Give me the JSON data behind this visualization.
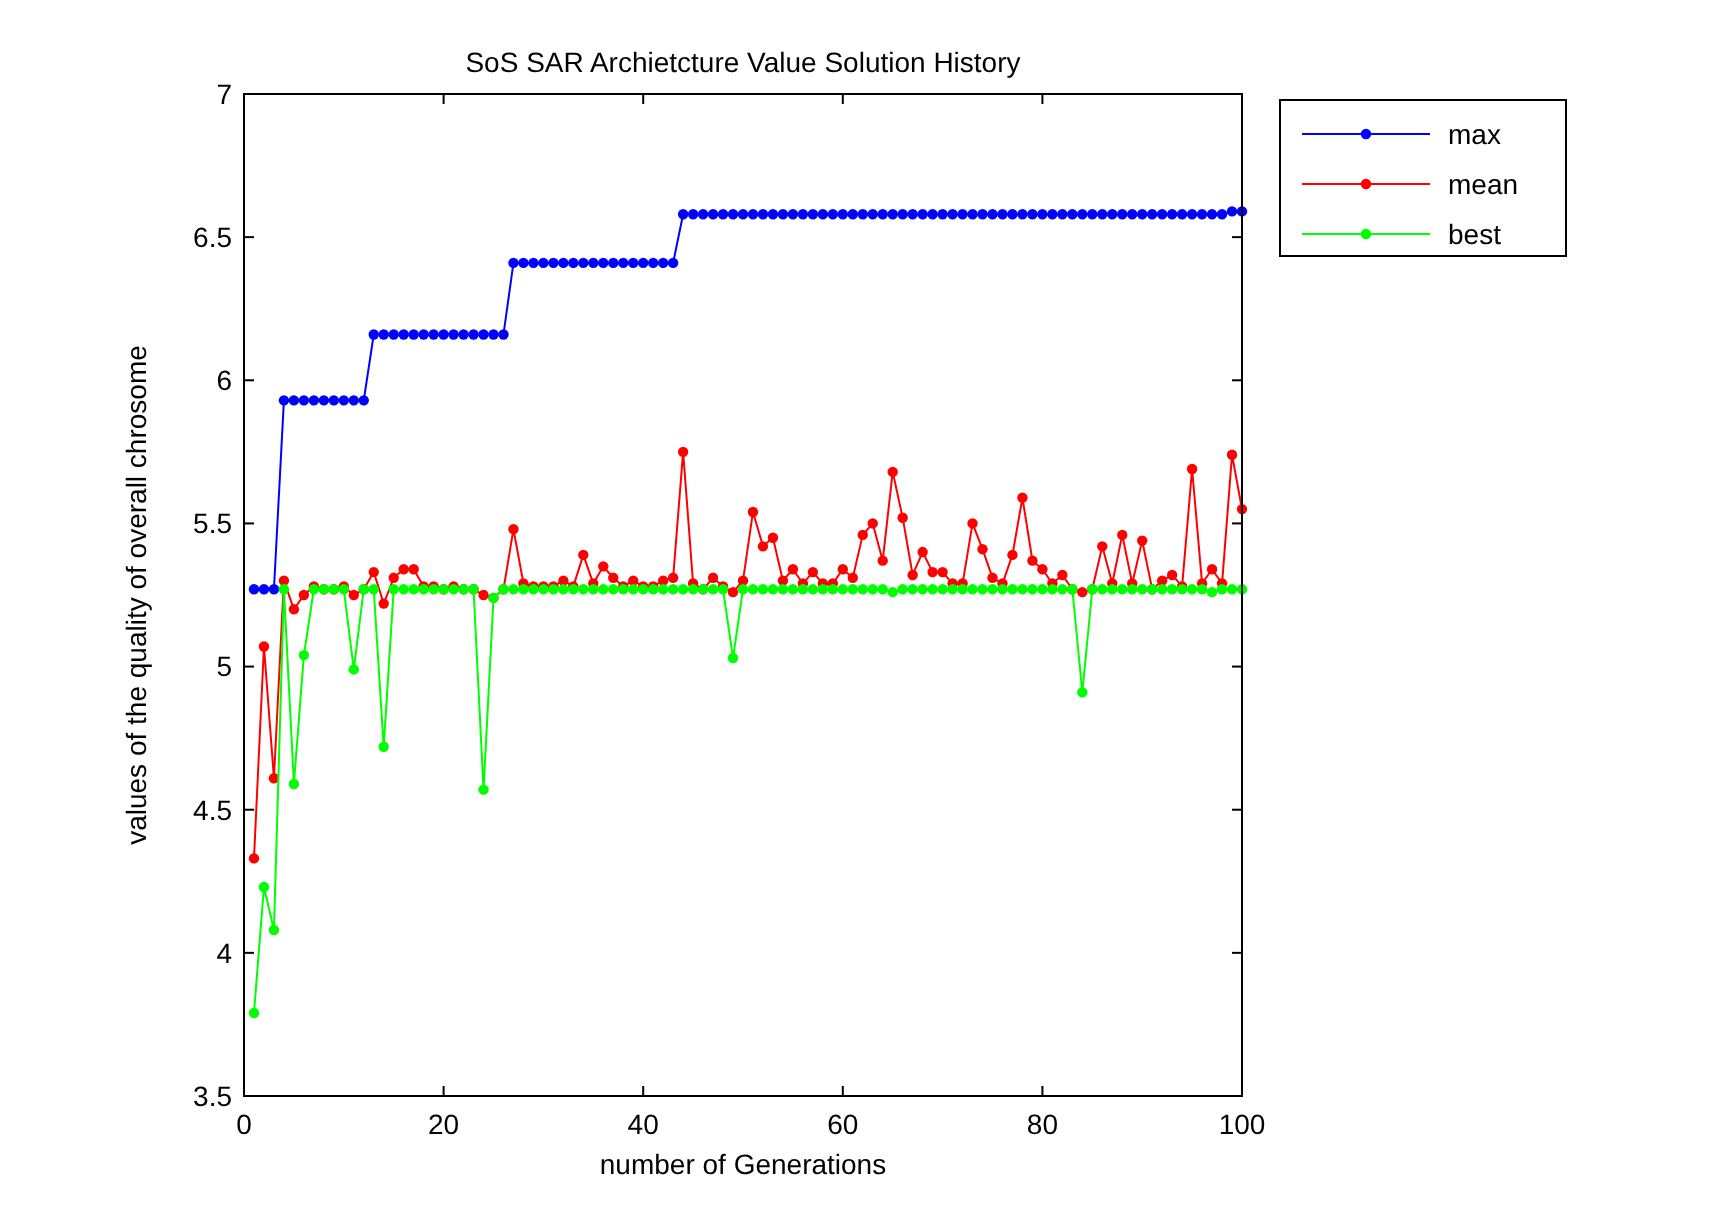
{
  "chart_data": {
    "type": "line",
    "title": "SoS SAR Archietcture Value Solution History",
    "xlabel": "number of Generations",
    "ylabel": "values of the quality of overall chrosome",
    "x": [
      1,
      2,
      3,
      4,
      5,
      6,
      7,
      8,
      9,
      10,
      11,
      12,
      13,
      14,
      15,
      16,
      17,
      18,
      19,
      20,
      21,
      22,
      23,
      24,
      25,
      26,
      27,
      28,
      29,
      30,
      31,
      32,
      33,
      34,
      35,
      36,
      37,
      38,
      39,
      40,
      41,
      42,
      43,
      44,
      45,
      46,
      47,
      48,
      49,
      50,
      51,
      52,
      53,
      54,
      55,
      56,
      57,
      58,
      59,
      60,
      61,
      62,
      63,
      64,
      65,
      66,
      67,
      68,
      69,
      70,
      71,
      72,
      73,
      74,
      75,
      76,
      77,
      78,
      79,
      80,
      81,
      82,
      83,
      84,
      85,
      86,
      87,
      88,
      89,
      90,
      91,
      92,
      93,
      94,
      95,
      96,
      97,
      98,
      99,
      100
    ],
    "series": [
      {
        "name": "max",
        "color": "#0000ff",
        "values": [
          5.27,
          5.27,
          5.27,
          5.93,
          5.93,
          5.93,
          5.93,
          5.93,
          5.93,
          5.93,
          5.93,
          5.93,
          6.16,
          6.16,
          6.16,
          6.16,
          6.16,
          6.16,
          6.16,
          6.16,
          6.16,
          6.16,
          6.16,
          6.16,
          6.16,
          6.16,
          6.41,
          6.41,
          6.41,
          6.41,
          6.41,
          6.41,
          6.41,
          6.41,
          6.41,
          6.41,
          6.41,
          6.41,
          6.41,
          6.41,
          6.41,
          6.41,
          6.41,
          6.58,
          6.58,
          6.58,
          6.58,
          6.58,
          6.58,
          6.58,
          6.58,
          6.58,
          6.58,
          6.58,
          6.58,
          6.58,
          6.58,
          6.58,
          6.58,
          6.58,
          6.58,
          6.58,
          6.58,
          6.58,
          6.58,
          6.58,
          6.58,
          6.58,
          6.58,
          6.58,
          6.58,
          6.58,
          6.58,
          6.58,
          6.58,
          6.58,
          6.58,
          6.58,
          6.58,
          6.58,
          6.58,
          6.58,
          6.58,
          6.58,
          6.58,
          6.58,
          6.58,
          6.58,
          6.58,
          6.58,
          6.58,
          6.58,
          6.58,
          6.58,
          6.58,
          6.58,
          6.58,
          6.58,
          6.59,
          6.59
        ]
      },
      {
        "name": "mean",
        "color": "#ff0000",
        "values": [
          4.33,
          5.07,
          4.61,
          5.3,
          5.2,
          5.25,
          5.28,
          5.27,
          5.27,
          5.28,
          5.25,
          5.27,
          5.33,
          5.22,
          5.31,
          5.34,
          5.34,
          5.28,
          5.28,
          5.27,
          5.28,
          5.27,
          5.27,
          5.25,
          5.24,
          5.27,
          5.48,
          5.29,
          5.28,
          5.28,
          5.28,
          5.3,
          5.28,
          5.39,
          5.29,
          5.35,
          5.31,
          5.28,
          5.3,
          5.28,
          5.28,
          5.3,
          5.31,
          5.75,
          5.29,
          5.27,
          5.31,
          5.28,
          5.26,
          5.3,
          5.54,
          5.42,
          5.45,
          5.3,
          5.34,
          5.29,
          5.33,
          5.29,
          5.29,
          5.34,
          5.31,
          5.46,
          5.5,
          5.37,
          5.68,
          5.52,
          5.32,
          5.4,
          5.33,
          5.33,
          5.29,
          5.29,
          5.5,
          5.41,
          5.31,
          5.29,
          5.39,
          5.59,
          5.37,
          5.34,
          5.29,
          5.32,
          5.27,
          5.26,
          5.27,
          5.42,
          5.29,
          5.46,
          5.29,
          5.44,
          5.27,
          5.3,
          5.32,
          5.28,
          5.69,
          5.29,
          5.34,
          5.29,
          5.74,
          5.55
        ]
      },
      {
        "name": "best",
        "color": "#00ff00",
        "values": [
          3.79,
          4.23,
          4.08,
          5.27,
          4.59,
          5.04,
          5.27,
          5.27,
          5.27,
          5.27,
          4.99,
          5.27,
          5.27,
          4.72,
          5.27,
          5.27,
          5.27,
          5.27,
          5.27,
          5.27,
          5.27,
          5.27,
          5.27,
          4.57,
          5.24,
          5.27,
          5.27,
          5.27,
          5.27,
          5.27,
          5.27,
          5.27,
          5.27,
          5.27,
          5.27,
          5.27,
          5.27,
          5.27,
          5.27,
          5.27,
          5.27,
          5.27,
          5.27,
          5.27,
          5.27,
          5.27,
          5.27,
          5.27,
          5.03,
          5.27,
          5.27,
          5.27,
          5.27,
          5.27,
          5.27,
          5.27,
          5.27,
          5.27,
          5.27,
          5.27,
          5.27,
          5.27,
          5.27,
          5.27,
          5.26,
          5.27,
          5.27,
          5.27,
          5.27,
          5.27,
          5.27,
          5.27,
          5.27,
          5.27,
          5.27,
          5.27,
          5.27,
          5.27,
          5.27,
          5.27,
          5.27,
          5.27,
          5.27,
          4.91,
          5.27,
          5.27,
          5.27,
          5.27,
          5.27,
          5.27,
          5.27,
          5.27,
          5.27,
          5.27,
          5.27,
          5.27,
          5.26,
          5.27,
          5.27,
          5.27
        ]
      }
    ],
    "xlim": [
      0,
      100
    ],
    "xticks": [
      0,
      20,
      40,
      60,
      80,
      100
    ],
    "ylim": [
      3.5,
      7
    ],
    "yticks": [
      3.5,
      4,
      4.5,
      5,
      5.5,
      6,
      6.5,
      7
    ],
    "grid": false,
    "legend": "top right",
    "marker": "circle",
    "line_style": "solid"
  }
}
